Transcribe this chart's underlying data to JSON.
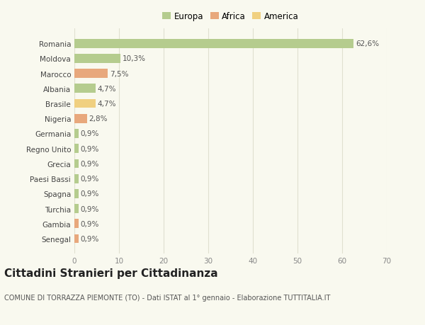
{
  "countries": [
    "Romania",
    "Moldova",
    "Marocco",
    "Albania",
    "Brasile",
    "Nigeria",
    "Germania",
    "Regno Unito",
    "Grecia",
    "Paesi Bassi",
    "Spagna",
    "Turchia",
    "Gambia",
    "Senegal"
  ],
  "values": [
    62.6,
    10.3,
    7.5,
    4.7,
    4.7,
    2.8,
    0.9,
    0.9,
    0.9,
    0.9,
    0.9,
    0.9,
    0.9,
    0.9
  ],
  "labels": [
    "62,6%",
    "10,3%",
    "7,5%",
    "4,7%",
    "4,7%",
    "2,8%",
    "0,9%",
    "0,9%",
    "0,9%",
    "0,9%",
    "0,9%",
    "0,9%",
    "0,9%",
    "0,9%"
  ],
  "colors": [
    "#b5cc8e",
    "#b5cc8e",
    "#e8a87c",
    "#b5cc8e",
    "#f0d080",
    "#e8a87c",
    "#b5cc8e",
    "#b5cc8e",
    "#b5cc8e",
    "#b5cc8e",
    "#b5cc8e",
    "#b5cc8e",
    "#e8a87c",
    "#e8a87c"
  ],
  "legend_labels": [
    "Europa",
    "Africa",
    "America"
  ],
  "legend_colors": [
    "#b5cc8e",
    "#e8a87c",
    "#f0d080"
  ],
  "xlim": [
    0,
    70
  ],
  "xticks": [
    0,
    10,
    20,
    30,
    40,
    50,
    60,
    70
  ],
  "title": "Cittadini Stranieri per Cittadinanza",
  "subtitle": "COMUNE DI TORRAZZA PIEMONTE (TO) - Dati ISTAT al 1° gennaio - Elaborazione TUTTITALIA.IT",
  "background_color": "#f9f9ef",
  "grid_color": "#e0e0d0",
  "bar_height": 0.6,
  "label_fontsize": 7.5,
  "tick_fontsize": 7.5,
  "title_fontsize": 11,
  "subtitle_fontsize": 7
}
